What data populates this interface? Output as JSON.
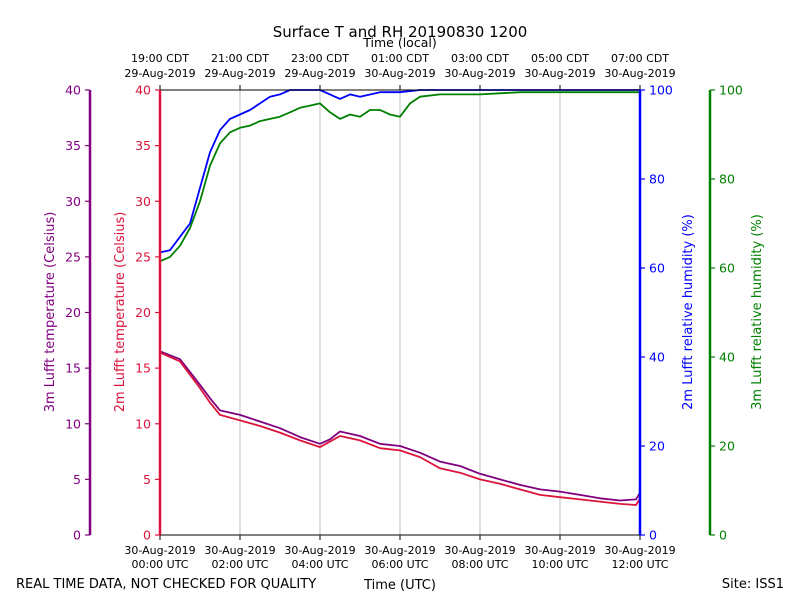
{
  "chart_data": {
    "type": "line",
    "title": "Surface T and RH 20190830 1200",
    "top_axis_label": "Time (local)",
    "xlabel": "Time (UTC)",
    "footer_left": "REAL TIME DATA, NOT CHECKED FOR QUALITY",
    "footer_right": "Site: ISS1",
    "x_hours_range": [
      0,
      12
    ],
    "bottom_ticks": [
      {
        "hour": 0,
        "line1": "30-Aug-2019",
        "line2": "00:00 UTC"
      },
      {
        "hour": 2,
        "line1": "30-Aug-2019",
        "line2": "02:00 UTC"
      },
      {
        "hour": 4,
        "line1": "30-Aug-2019",
        "line2": "04:00 UTC"
      },
      {
        "hour": 6,
        "line1": "30-Aug-2019",
        "line2": "06:00 UTC"
      },
      {
        "hour": 8,
        "line1": "30-Aug-2019",
        "line2": "08:00 UTC"
      },
      {
        "hour": 10,
        "line1": "30-Aug-2019",
        "line2": "10:00 UTC"
      },
      {
        "hour": 12,
        "line1": "30-Aug-2019",
        "line2": "12:00 UTC"
      }
    ],
    "top_ticks": [
      {
        "hour": 0,
        "line1": "19:00 CDT",
        "line2": "29-Aug-2019"
      },
      {
        "hour": 2,
        "line1": "21:00 CDT",
        "line2": "29-Aug-2019"
      },
      {
        "hour": 4,
        "line1": "23:00 CDT",
        "line2": "29-Aug-2019"
      },
      {
        "hour": 6,
        "line1": "01:00 CDT",
        "line2": "30-Aug-2019"
      },
      {
        "hour": 8,
        "line1": "03:00 CDT",
        "line2": "30-Aug-2019"
      },
      {
        "hour": 10,
        "line1": "05:00 CDT",
        "line2": "30-Aug-2019"
      },
      {
        "hour": 12,
        "line1": "07:00 CDT",
        "line2": "30-Aug-2019"
      }
    ],
    "axes": {
      "t3m": {
        "label": "3m Lufft temperature (Celsius)",
        "range": [
          0,
          40
        ],
        "ticks": [
          "0",
          "5",
          "10",
          "15",
          "20",
          "25",
          "30",
          "35",
          "40"
        ],
        "color": "#800080"
      },
      "t2m": {
        "label": "2m Lufft temperature (Celsius)",
        "range": [
          0,
          40
        ],
        "ticks": [
          "0",
          "5",
          "10",
          "15",
          "20",
          "25",
          "30",
          "35",
          "40"
        ],
        "color": "#dc143c"
      },
      "rh2m": {
        "label": "2m Lufft relative humidity (%)",
        "range": [
          0,
          100
        ],
        "ticks": [
          "0",
          "20",
          "40",
          "60",
          "80",
          "100"
        ],
        "color": "#0000ff"
      },
      "rh3m": {
        "label": "3m Lufft relative humidity (%)",
        "range": [
          0,
          100
        ],
        "ticks": [
          "0",
          "20",
          "40",
          "60",
          "80",
          "100"
        ],
        "color": "#008000"
      }
    },
    "series": [
      {
        "name": "3m Lufft temperature",
        "axis": "t3m",
        "color": "#800080",
        "x": [
          0,
          0.5,
          1,
          1.25,
          1.5,
          2,
          2.5,
          3,
          3.5,
          4,
          4.25,
          4.5,
          5,
          5.5,
          6,
          6.5,
          7,
          7.5,
          8,
          8.5,
          9,
          9.5,
          10,
          10.5,
          11,
          11.5,
          11.9,
          12
        ],
        "values": [
          16.5,
          15.8,
          13.5,
          12.3,
          11.2,
          10.8,
          10.2,
          9.6,
          8.8,
          8.2,
          8.6,
          9.3,
          8.9,
          8.2,
          8.0,
          7.4,
          6.6,
          6.2,
          5.5,
          5.0,
          4.5,
          4.1,
          3.9,
          3.6,
          3.3,
          3.1,
          3.2,
          3.8
        ]
      },
      {
        "name": "2m Lufft temperature",
        "axis": "t2m",
        "color": "#dc143c",
        "x": [
          0,
          0.5,
          1,
          1.25,
          1.5,
          2,
          2.5,
          3,
          3.5,
          4,
          4.25,
          4.5,
          5,
          5.5,
          6,
          6.5,
          7,
          7.5,
          8,
          8.5,
          9,
          9.5,
          10,
          10.5,
          11,
          11.5,
          11.9,
          12
        ],
        "values": [
          16.4,
          15.6,
          13.2,
          11.9,
          10.8,
          10.3,
          9.8,
          9.2,
          8.5,
          7.9,
          8.4,
          8.9,
          8.5,
          7.8,
          7.6,
          7.0,
          6.0,
          5.6,
          5.0,
          4.6,
          4.1,
          3.6,
          3.4,
          3.2,
          3.0,
          2.8,
          2.7,
          3.3
        ]
      },
      {
        "name": "2m Lufft relative humidity",
        "axis": "rh2m",
        "color": "#0000ff",
        "x": [
          0,
          0.25,
          0.5,
          0.75,
          1,
          1.25,
          1.5,
          1.75,
          2,
          2.25,
          2.5,
          2.75,
          3,
          3.25,
          3.5,
          3.75,
          4,
          4.25,
          4.5,
          4.75,
          5,
          5.5,
          6,
          6.5,
          7,
          8,
          9,
          10,
          11,
          12
        ],
        "values": [
          63.5,
          64,
          67,
          70,
          78,
          86,
          91,
          93.5,
          94.5,
          95.5,
          97,
          98.5,
          99,
          100,
          100,
          100,
          100,
          99,
          98,
          99,
          98.5,
          99.5,
          99.5,
          100,
          100,
          100,
          100,
          100,
          100,
          100
        ]
      },
      {
        "name": "3m Lufft relative humidity",
        "axis": "rh3m",
        "color": "#008000",
        "x": [
          0,
          0.25,
          0.5,
          0.75,
          1,
          1.25,
          1.5,
          1.75,
          2,
          2.25,
          2.5,
          2.75,
          3,
          3.25,
          3.5,
          3.75,
          4,
          4.25,
          4.5,
          4.75,
          5,
          5.25,
          5.5,
          5.75,
          6,
          6.25,
          6.5,
          7,
          7.5,
          8,
          9,
          10,
          11,
          12
        ],
        "values": [
          61.5,
          62.5,
          65,
          69,
          75,
          83,
          88,
          90.5,
          91.5,
          92,
          93,
          93.5,
          94,
          95,
          96,
          96.5,
          97,
          95,
          93.5,
          94.5,
          94,
          95.5,
          95.5,
          94.5,
          94,
          97,
          98.5,
          99,
          99,
          99,
          99.5,
          99.5,
          99.5,
          99.5
        ]
      }
    ]
  }
}
